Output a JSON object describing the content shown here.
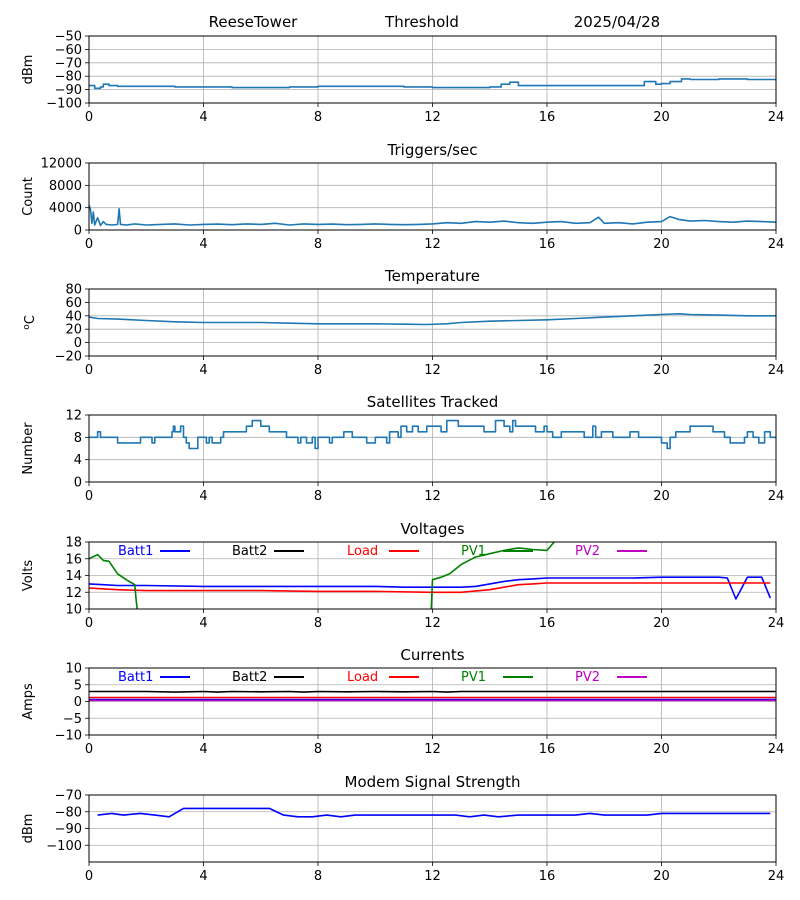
{
  "header": {
    "station": "ReeseTower",
    "label": "Threshold",
    "date": "2025/04/28"
  },
  "chart_data": [
    {
      "type": "line",
      "title": "",
      "xlabel": "",
      "ylabel": "dBm",
      "xlim": [
        0,
        24
      ],
      "ylim": [
        -100,
        -50
      ],
      "x_ticks": [
        "0",
        "4",
        "8",
        "12",
        "16",
        "20",
        "24"
      ],
      "y_ticks": [
        "−100",
        "−90",
        "−80",
        "−70",
        "−60",
        "−50"
      ],
      "grid": true,
      "series": [
        {
          "color": "#1f77b4",
          "step": true,
          "x": [
            0,
            0.2,
            0.4,
            0.5,
            0.7,
            1,
            2,
            3,
            4,
            5,
            6,
            7,
            8,
            9,
            10,
            11,
            12,
            13,
            14,
            14.4,
            14.7,
            15,
            16,
            17,
            18,
            19,
            19.4,
            19.8,
            20,
            20.3,
            20.7,
            21,
            22,
            23,
            24
          ],
          "values": [
            -87,
            -89,
            -88,
            -86,
            -87,
            -87.5,
            -87.5,
            -88,
            -88,
            -88.5,
            -88.5,
            -88,
            -87.5,
            -87.5,
            -87.5,
            -88,
            -88.5,
            -88.5,
            -88,
            -86,
            -84.5,
            -87,
            -87,
            -87,
            -87,
            -87,
            -84,
            -86,
            -85.5,
            -84,
            -82,
            -82.5,
            -82,
            -82.5,
            -83
          ]
        }
      ]
    },
    {
      "type": "line",
      "title": "Triggers/sec",
      "xlabel": "",
      "ylabel": "Count",
      "xlim": [
        0,
        24
      ],
      "ylim": [
        0,
        12000
      ],
      "x_ticks": [
        "0",
        "4",
        "8",
        "12",
        "16",
        "20",
        "24"
      ],
      "y_ticks": [
        "0",
        "4000",
        "8000",
        "12000"
      ],
      "grid": true,
      "series": [
        {
          "color": "#1f77b4",
          "x": [
            0,
            0.05,
            0.1,
            0.15,
            0.2,
            0.3,
            0.4,
            0.5,
            0.6,
            0.8,
            1,
            1.05,
            1.1,
            1.3,
            1.6,
            2,
            2.5,
            3,
            3.5,
            4,
            4.5,
            5,
            5.5,
            6,
            6.5,
            7,
            7.5,
            8,
            8.5,
            9,
            9.5,
            10,
            10.5,
            11,
            11.5,
            12,
            12.5,
            13,
            13.5,
            14,
            14.5,
            15,
            15.5,
            16,
            16.5,
            17,
            17.5,
            17.8,
            18,
            18.5,
            19,
            19.5,
            20,
            20.3,
            20.6,
            21,
            21.5,
            22,
            22.5,
            23,
            23.5,
            24
          ],
          "values": [
            4500,
            3800,
            1200,
            3200,
            900,
            2200,
            800,
            1500,
            1000,
            900,
            1000,
            3800,
            1000,
            900,
            1100,
            900,
            1000,
            1100,
            900,
            1000,
            1050,
            950,
            1100,
            1000,
            1200,
            900,
            1100,
            1000,
            1050,
            950,
            1000,
            1100,
            1000,
            950,
            1000,
            1100,
            1300,
            1200,
            1500,
            1400,
            1600,
            1300,
            1200,
            1400,
            1500,
            1200,
            1300,
            2300,
            1200,
            1300,
            1100,
            1400,
            1500,
            2400,
            1900,
            1600,
            1700,
            1500,
            1400,
            1600,
            1500,
            1400
          ]
        }
      ]
    },
    {
      "type": "line",
      "title": "Temperature",
      "xlabel": "",
      "ylabel": "°C",
      "ylabel_base": "C",
      "ylabel_sup": "o",
      "xlim": [
        0,
        24
      ],
      "ylim": [
        -20,
        80
      ],
      "x_ticks": [
        "0",
        "4",
        "8",
        "12",
        "16",
        "20",
        "24"
      ],
      "y_ticks": [
        "−20",
        "0",
        "20",
        "40",
        "60",
        "80"
      ],
      "grid": true,
      "series": [
        {
          "color": "#1f77b4",
          "x": [
            0,
            0.3,
            1,
            2,
            3,
            4,
            5,
            6,
            7,
            8,
            9,
            10,
            11,
            11.8,
            12.5,
            13,
            14,
            15,
            16,
            17,
            18,
            19,
            20,
            20.6,
            21,
            22,
            23,
            24
          ],
          "values": [
            38,
            36,
            35,
            33,
            31,
            30,
            30,
            30,
            29,
            28,
            28,
            28,
            27.5,
            27,
            28,
            30,
            32,
            33,
            34,
            36,
            38,
            40,
            42,
            43,
            42,
            41,
            40,
            40
          ]
        }
      ]
    },
    {
      "type": "line",
      "title": "Satellites Tracked",
      "xlabel": "",
      "ylabel": "Number",
      "xlim": [
        0,
        24
      ],
      "ylim": [
        0,
        12
      ],
      "x_ticks": [
        "0",
        "4",
        "8",
        "12",
        "16",
        "20",
        "24"
      ],
      "y_ticks": [
        "0",
        "4",
        "8",
        "12"
      ],
      "grid": true,
      "series": [
        {
          "color": "#1f77b4",
          "step": true,
          "x": [
            0,
            0.3,
            0.4,
            0.8,
            1,
            1.3,
            1.8,
            2.2,
            2.3,
            2.9,
            2.95,
            3,
            3.2,
            3.3,
            3.4,
            3.5,
            3.8,
            4,
            4.1,
            4.2,
            4.3,
            4.6,
            4.7,
            5.1,
            5.5,
            5.7,
            6,
            6.3,
            6.6,
            6.9,
            7,
            7.3,
            7.4,
            7.6,
            7.8,
            7.9,
            8,
            8.4,
            8.5,
            8.9,
            9,
            9.2,
            9.7,
            10,
            10.4,
            10.5,
            10.8,
            10.9,
            11.1,
            11.3,
            11.5,
            11.8,
            12,
            12.3,
            12.5,
            12.9,
            13.3,
            13.8,
            14.2,
            14.5,
            14.7,
            14.8,
            14.9,
            15.3,
            15.6,
            15.9,
            16,
            16.2,
            16.5,
            16.9,
            17.3,
            17.6,
            17.7,
            17.9,
            18,
            18.3,
            18.9,
            19.2,
            19.7,
            20,
            20.2,
            20.3,
            20.5,
            20.7,
            21,
            21.3,
            21.8,
            22,
            22.2,
            22.4,
            22.9,
            23,
            23.2,
            23.4,
            23.6,
            23.8,
            24
          ],
          "values": [
            8,
            9,
            8,
            8,
            7,
            7,
            8,
            7,
            8,
            9,
            10,
            9,
            10,
            8,
            7,
            6,
            8,
            8,
            7,
            8,
            7,
            8,
            9,
            9,
            10,
            11,
            10,
            9,
            9,
            8,
            8,
            7,
            8,
            7,
            8,
            6,
            8,
            7,
            8,
            9,
            9,
            8,
            7,
            8,
            7,
            9,
            8,
            10,
            9,
            10,
            9,
            10,
            10,
            9,
            11,
            10,
            10,
            9,
            11,
            10,
            9,
            11,
            10,
            10,
            9,
            10,
            9,
            8,
            9,
            9,
            8,
            10,
            8,
            9,
            9,
            8,
            9,
            8,
            8,
            7,
            6,
            8,
            9,
            9,
            10,
            10,
            9,
            9,
            8,
            7,
            8,
            9,
            8,
            7,
            9,
            8,
            8
          ]
        }
      ]
    },
    {
      "type": "line",
      "title": "Voltages",
      "xlabel": "",
      "ylabel": "Volts",
      "xlim": [
        0,
        24
      ],
      "ylim": [
        10,
        18
      ],
      "x_ticks": [
        "0",
        "4",
        "8",
        "12",
        "16",
        "20",
        "24"
      ],
      "y_ticks": [
        "10",
        "12",
        "14",
        "16",
        "18"
      ],
      "grid": true,
      "legend": "top, single row",
      "series": [
        {
          "name": "Batt1",
          "color": "#0000ff",
          "x": [
            0,
            0.5,
            1,
            2,
            4,
            6,
            8,
            10,
            11,
            12,
            13,
            13.5,
            14,
            14.5,
            15,
            15.5,
            16,
            17,
            18,
            19,
            20,
            21,
            22,
            22.3,
            22.6,
            23,
            23.5,
            23.8
          ],
          "values": [
            13,
            12.9,
            12.8,
            12.8,
            12.7,
            12.7,
            12.7,
            12.7,
            12.6,
            12.6,
            12.6,
            12.7,
            13,
            13.3,
            13.5,
            13.6,
            13.7,
            13.7,
            13.7,
            13.7,
            13.8,
            13.8,
            13.8,
            13.7,
            11.2,
            13.8,
            13.8,
            11.3
          ]
        },
        {
          "name": "Batt2",
          "color": "#000000",
          "x": [],
          "values": []
        },
        {
          "name": "Load",
          "color": "#ff0000",
          "x": [
            0,
            1,
            2,
            4,
            6,
            8,
            10,
            12,
            13,
            14,
            14.5,
            15,
            15.5,
            16,
            18,
            20,
            22,
            23,
            23.8
          ],
          "values": [
            12.5,
            12.3,
            12.2,
            12.2,
            12.2,
            12.1,
            12.1,
            12,
            12,
            12.3,
            12.6,
            12.9,
            13,
            13.1,
            13.1,
            13.1,
            13.1,
            13.1,
            13.1
          ]
        },
        {
          "name": "PV1",
          "color": "#008000",
          "x": [
            0,
            0.3,
            0.5,
            0.7,
            1,
            1.3,
            1.6,
            1.65,
            1.7,
            11.95,
            12,
            12.3,
            12.6,
            13,
            13.5,
            14,
            14.5,
            15,
            15.5,
            16,
            16.5
          ],
          "values": [
            16,
            16.5,
            15.8,
            15.7,
            14.2,
            13.5,
            12.9,
            11,
            9.5,
            9.5,
            13.5,
            13.8,
            14.2,
            15.3,
            16.2,
            16.6,
            17,
            17.3,
            17.1,
            17,
            19
          ]
        },
        {
          "name": "PV2",
          "color": "#bf00bf",
          "x": [],
          "values": []
        }
      ]
    },
    {
      "type": "line",
      "title": "Currents",
      "xlabel": "",
      "ylabel": "Amps",
      "xlim": [
        0,
        24
      ],
      "ylim": [
        -10,
        10
      ],
      "x_ticks": [
        "0",
        "4",
        "8",
        "12",
        "16",
        "20",
        "24"
      ],
      "y_ticks": [
        "−10",
        "−5",
        "0",
        "5",
        "10"
      ],
      "grid": true,
      "legend": "top, single row",
      "series": [
        {
          "name": "Batt1",
          "color": "#0000ff",
          "x": [
            0,
            24
          ],
          "values": [
            0.6,
            0.6
          ]
        },
        {
          "name": "Batt2",
          "color": "#000000",
          "x": [
            0,
            2,
            3,
            4,
            4.5,
            5,
            6,
            7,
            7.5,
            8,
            9,
            10,
            11,
            12,
            12.5,
            13,
            14,
            16,
            18,
            20,
            22,
            24
          ],
          "values": [
            3,
            3,
            2.8,
            3,
            2.8,
            3,
            2.9,
            3,
            2.8,
            3,
            2.9,
            3,
            2.9,
            3,
            2.8,
            3,
            3,
            3,
            3,
            3,
            3,
            3
          ]
        },
        {
          "name": "Load",
          "color": "#ff0000",
          "x": [
            0,
            24
          ],
          "values": [
            1.2,
            1.2
          ]
        },
        {
          "name": "PV1",
          "color": "#008000",
          "x": [],
          "values": []
        },
        {
          "name": "PV2",
          "color": "#bf00bf",
          "x": [
            0,
            24
          ],
          "values": [
            0.3,
            0.3
          ]
        }
      ]
    },
    {
      "type": "line",
      "title": "Modem Signal Strength",
      "xlabel": "",
      "ylabel": "dBm",
      "xlim": [
        0,
        24
      ],
      "ylim": [
        -110,
        -70
      ],
      "x_ticks": [
        "0",
        "4",
        "8",
        "12",
        "16",
        "20",
        "24"
      ],
      "y_ticks": [
        "−100",
        "−90",
        "−80",
        "−70"
      ],
      "grid": true,
      "series": [
        {
          "color": "#0000ff",
          "x": [
            0.3,
            0.8,
            1.2,
            1.8,
            2.3,
            2.8,
            3.3,
            3.8,
            4.5,
            5.5,
            6.3,
            6.8,
            7.3,
            7.8,
            8.3,
            8.8,
            9.3,
            10,
            11,
            12,
            12.8,
            13.3,
            13.8,
            14.3,
            15,
            16,
            17,
            17.5,
            18,
            19,
            19.5,
            20,
            21,
            22,
            23,
            23.8
          ],
          "values": [
            -82,
            -81,
            -82,
            -81,
            -82,
            -83,
            -78,
            -78,
            -78,
            -78,
            -78,
            -82,
            -83,
            -83,
            -82,
            -83,
            -82,
            -82,
            -82,
            -82,
            -82,
            -83,
            -82,
            -83,
            -82,
            -82,
            -82,
            -81,
            -82,
            -82,
            -82,
            -81,
            -81,
            -81,
            -81,
            -81
          ]
        }
      ]
    }
  ]
}
